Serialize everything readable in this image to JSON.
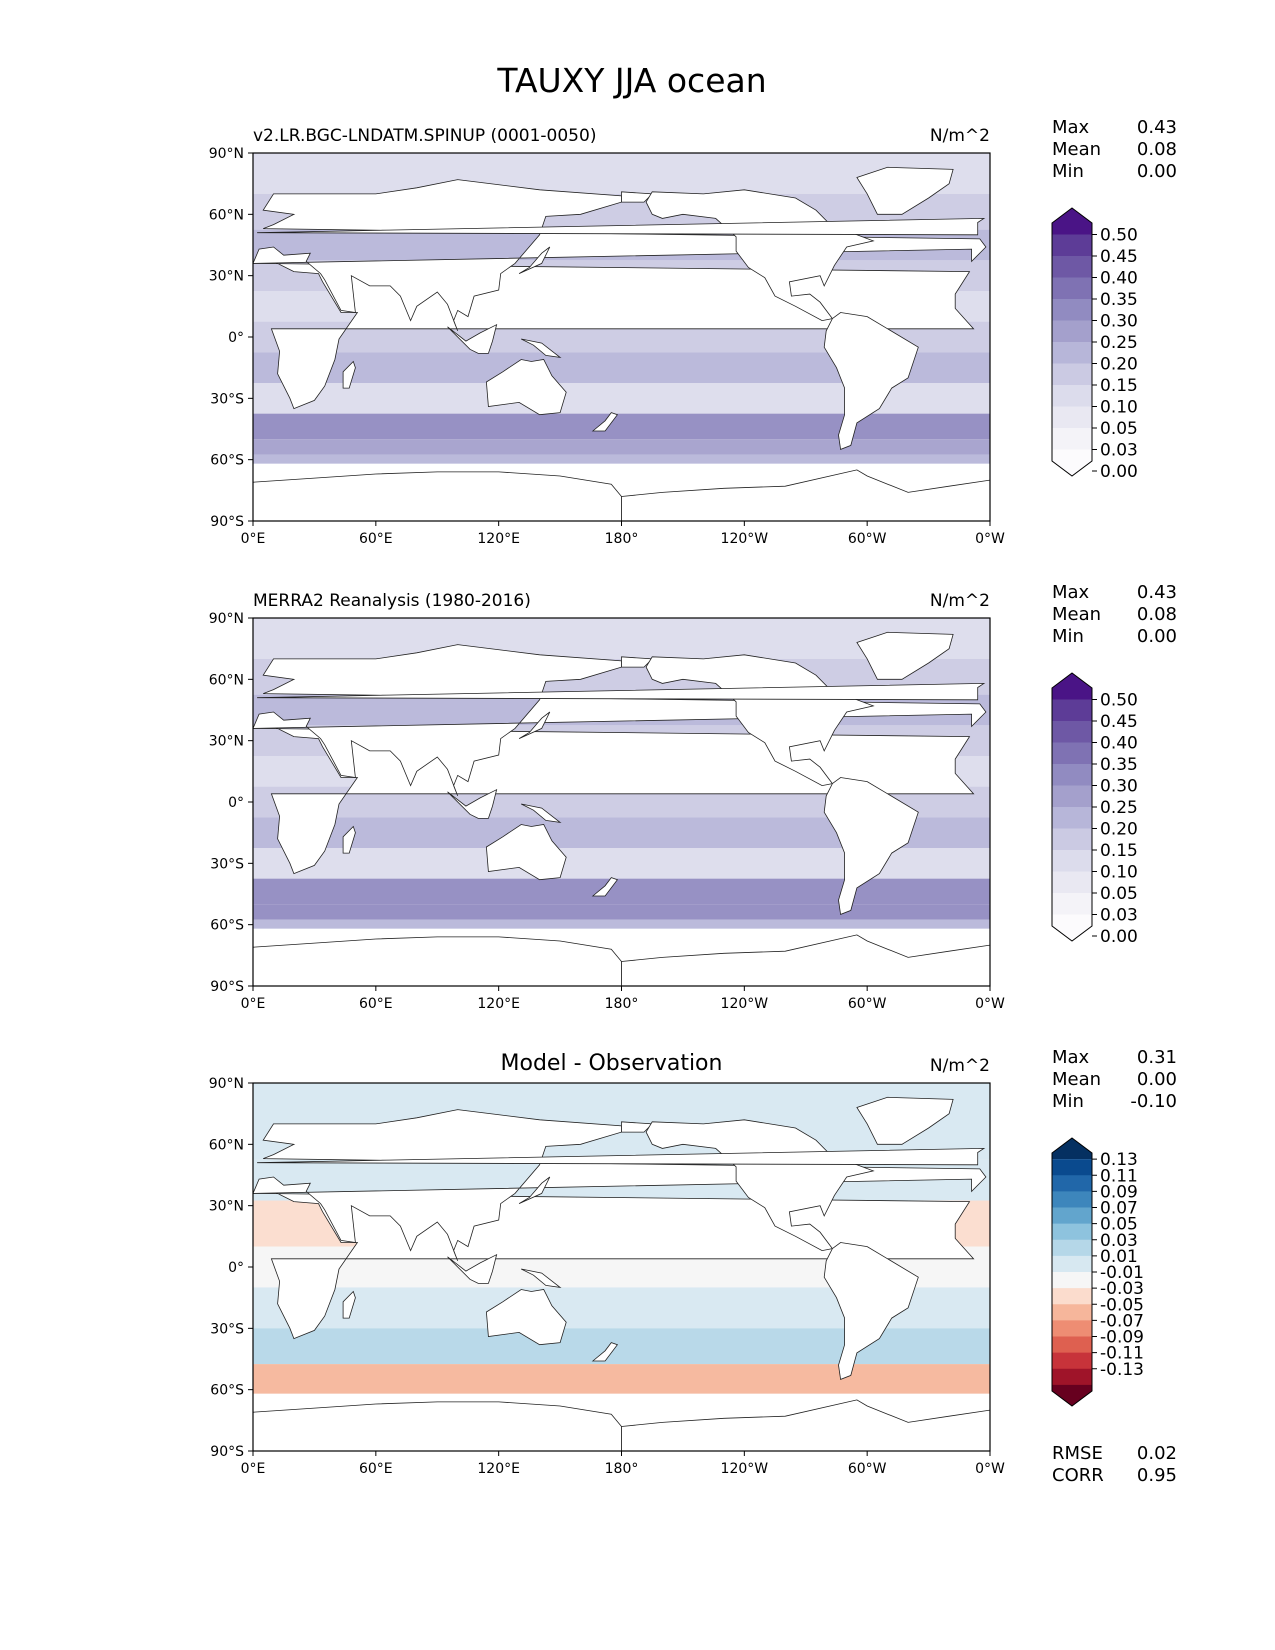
{
  "title": "TAUXY JJA ocean",
  "colors": {
    "seq": [
      "#fcfbfd",
      "#f4f3f8",
      "#e9e8f2",
      "#dcdcec",
      "#cbcae3",
      "#b7b6d9",
      "#a4a0cc",
      "#918bc1",
      "#7f72b3",
      "#6e58a5",
      "#5d3c97",
      "#4a1486"
    ],
    "div": [
      "#67001f",
      "#9f1429",
      "#c7333a",
      "#de6050",
      "#ee8d73",
      "#f6b69b",
      "#fbdccd",
      "#f6f6f6",
      "#d7e8f1",
      "#b5d7e8",
      "#8ec3de",
      "#62a5cd",
      "#3d86bc",
      "#2167a9",
      "#0a4a8e",
      "#053061"
    ]
  },
  "chart_data": [
    {
      "type": "heatmap",
      "panel": "model",
      "left_title": "v2.LR.BGC-LNDATM.SPINUP (0001-0050)",
      "center_title": "",
      "units": "N/m^2",
      "xticks": [
        "0°E",
        "60°E",
        "120°E",
        "180°",
        "120°W",
        "60°W",
        "0°W"
      ],
      "yticks": [
        "90°N",
        "60°N",
        "30°N",
        "0°",
        "30°S",
        "60°S",
        "90°S"
      ],
      "stats": [
        {
          "label": "Max",
          "value": "0.43"
        },
        {
          "label": "Mean",
          "value": "0.08"
        },
        {
          "label": "Min",
          "value": "0.00"
        }
      ],
      "colorbar": {
        "labels": [
          "0.50",
          "0.45",
          "0.40",
          "0.35",
          "0.30",
          "0.25",
          "0.20",
          "0.15",
          "0.10",
          "0.05",
          "0.03",
          "0.00"
        ],
        "extend": "both"
      },
      "field_bands": [
        {
          "lat": 80,
          "value": 0.05
        },
        {
          "lat": 60,
          "value": 0.1
        },
        {
          "lat": 45,
          "value": 0.15
        },
        {
          "lat": 30,
          "value": 0.1
        },
        {
          "lat": 15,
          "value": 0.08
        },
        {
          "lat": 0,
          "value": 0.12
        },
        {
          "lat": -15,
          "value": 0.15
        },
        {
          "lat": -30,
          "value": 0.08
        },
        {
          "lat": -45,
          "value": 0.25
        },
        {
          "lat": -55,
          "value": 0.22
        },
        {
          "lat": -60,
          "value": 0.15
        }
      ]
    },
    {
      "type": "heatmap",
      "panel": "observation",
      "left_title": "MERRA2 Reanalysis (1980-2016)",
      "center_title": "",
      "units": "N/m^2",
      "xticks": [
        "0°E",
        "60°E",
        "120°E",
        "180°",
        "120°W",
        "60°W",
        "0°W"
      ],
      "yticks": [
        "90°N",
        "60°N",
        "30°N",
        "0°",
        "30°S",
        "60°S",
        "90°S"
      ],
      "stats": [
        {
          "label": "Max",
          "value": "0.43"
        },
        {
          "label": "Mean",
          "value": "0.08"
        },
        {
          "label": "Min",
          "value": "0.00"
        }
      ],
      "colorbar": {
        "labels": [
          "0.50",
          "0.45",
          "0.40",
          "0.35",
          "0.30",
          "0.25",
          "0.20",
          "0.15",
          "0.10",
          "0.05",
          "0.03",
          "0.00"
        ],
        "extend": "both"
      },
      "field_bands": [
        {
          "lat": 80,
          "value": 0.05
        },
        {
          "lat": 60,
          "value": 0.1
        },
        {
          "lat": 45,
          "value": 0.15
        },
        {
          "lat": 30,
          "value": 0.1
        },
        {
          "lat": 15,
          "value": 0.08
        },
        {
          "lat": 0,
          "value": 0.1
        },
        {
          "lat": -15,
          "value": 0.15
        },
        {
          "lat": -30,
          "value": 0.08
        },
        {
          "lat": -45,
          "value": 0.28
        },
        {
          "lat": -55,
          "value": 0.25
        },
        {
          "lat": -60,
          "value": 0.18
        }
      ]
    },
    {
      "type": "heatmap",
      "panel": "difference",
      "left_title": "",
      "center_title": "Model - Observation",
      "units": "N/m^2",
      "xticks": [
        "0°E",
        "60°E",
        "120°E",
        "180°",
        "120°W",
        "60°W",
        "0°W"
      ],
      "yticks": [
        "90°N",
        "60°N",
        "30°N",
        "0°",
        "30°S",
        "60°S",
        "90°S"
      ],
      "stats": [
        {
          "label": "Max",
          "value": "0.31"
        },
        {
          "label": "Mean",
          "value": "0.00"
        },
        {
          "label": "Min",
          "value": "-0.10"
        }
      ],
      "colorbar": {
        "labels": [
          "0.13",
          "0.11",
          "0.09",
          "0.07",
          "0.05",
          "0.03",
          "0.01",
          "-0.01",
          "-0.03",
          "-0.05",
          "-0.07",
          "-0.09",
          "-0.11",
          "-0.13"
        ],
        "extend": "both"
      },
      "metrics": [
        {
          "label": "RMSE",
          "value": "0.02"
        },
        {
          "label": "CORR",
          "value": "0.95"
        }
      ],
      "field_bands": [
        {
          "lat": 60,
          "value": 0.01
        },
        {
          "lat": 45,
          "value": 0.02
        },
        {
          "lat": 20,
          "value": -0.02
        },
        {
          "lat": 0,
          "value": 0.0
        },
        {
          "lat": -20,
          "value": 0.01
        },
        {
          "lat": -40,
          "value": 0.03
        },
        {
          "lat": -55,
          "value": -0.04
        }
      ]
    }
  ]
}
